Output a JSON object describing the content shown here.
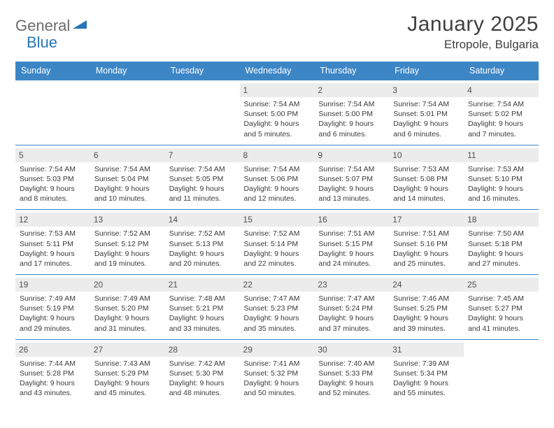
{
  "logo": {
    "general": "General",
    "blue": "Blue"
  },
  "title": "January 2025",
  "location": "Etropole, Bulgaria",
  "colors": {
    "header_bar": "#3d86c6",
    "day_number_bg": "#ececec",
    "text": "#404040",
    "logo_gray": "#6b6b6b",
    "logo_blue": "#2676b8"
  },
  "day_names": [
    "Sunday",
    "Monday",
    "Tuesday",
    "Wednesday",
    "Thursday",
    "Friday",
    "Saturday"
  ],
  "weeks": [
    [
      {
        "n": "",
        "sr": "",
        "ss": "",
        "dl": ""
      },
      {
        "n": "",
        "sr": "",
        "ss": "",
        "dl": ""
      },
      {
        "n": "",
        "sr": "",
        "ss": "",
        "dl": ""
      },
      {
        "n": "1",
        "sr": "Sunrise: 7:54 AM",
        "ss": "Sunset: 5:00 PM",
        "dl": "Daylight: 9 hours and 5 minutes."
      },
      {
        "n": "2",
        "sr": "Sunrise: 7:54 AM",
        "ss": "Sunset: 5:00 PM",
        "dl": "Daylight: 9 hours and 6 minutes."
      },
      {
        "n": "3",
        "sr": "Sunrise: 7:54 AM",
        "ss": "Sunset: 5:01 PM",
        "dl": "Daylight: 9 hours and 6 minutes."
      },
      {
        "n": "4",
        "sr": "Sunrise: 7:54 AM",
        "ss": "Sunset: 5:02 PM",
        "dl": "Daylight: 9 hours and 7 minutes."
      }
    ],
    [
      {
        "n": "5",
        "sr": "Sunrise: 7:54 AM",
        "ss": "Sunset: 5:03 PM",
        "dl": "Daylight: 9 hours and 8 minutes."
      },
      {
        "n": "6",
        "sr": "Sunrise: 7:54 AM",
        "ss": "Sunset: 5:04 PM",
        "dl": "Daylight: 9 hours and 10 minutes."
      },
      {
        "n": "7",
        "sr": "Sunrise: 7:54 AM",
        "ss": "Sunset: 5:05 PM",
        "dl": "Daylight: 9 hours and 11 minutes."
      },
      {
        "n": "8",
        "sr": "Sunrise: 7:54 AM",
        "ss": "Sunset: 5:06 PM",
        "dl": "Daylight: 9 hours and 12 minutes."
      },
      {
        "n": "9",
        "sr": "Sunrise: 7:54 AM",
        "ss": "Sunset: 5:07 PM",
        "dl": "Daylight: 9 hours and 13 minutes."
      },
      {
        "n": "10",
        "sr": "Sunrise: 7:53 AM",
        "ss": "Sunset: 5:08 PM",
        "dl": "Daylight: 9 hours and 14 minutes."
      },
      {
        "n": "11",
        "sr": "Sunrise: 7:53 AM",
        "ss": "Sunset: 5:10 PM",
        "dl": "Daylight: 9 hours and 16 minutes."
      }
    ],
    [
      {
        "n": "12",
        "sr": "Sunrise: 7:53 AM",
        "ss": "Sunset: 5:11 PM",
        "dl": "Daylight: 9 hours and 17 minutes."
      },
      {
        "n": "13",
        "sr": "Sunrise: 7:52 AM",
        "ss": "Sunset: 5:12 PM",
        "dl": "Daylight: 9 hours and 19 minutes."
      },
      {
        "n": "14",
        "sr": "Sunrise: 7:52 AM",
        "ss": "Sunset: 5:13 PM",
        "dl": "Daylight: 9 hours and 20 minutes."
      },
      {
        "n": "15",
        "sr": "Sunrise: 7:52 AM",
        "ss": "Sunset: 5:14 PM",
        "dl": "Daylight: 9 hours and 22 minutes."
      },
      {
        "n": "16",
        "sr": "Sunrise: 7:51 AM",
        "ss": "Sunset: 5:15 PM",
        "dl": "Daylight: 9 hours and 24 minutes."
      },
      {
        "n": "17",
        "sr": "Sunrise: 7:51 AM",
        "ss": "Sunset: 5:16 PM",
        "dl": "Daylight: 9 hours and 25 minutes."
      },
      {
        "n": "18",
        "sr": "Sunrise: 7:50 AM",
        "ss": "Sunset: 5:18 PM",
        "dl": "Daylight: 9 hours and 27 minutes."
      }
    ],
    [
      {
        "n": "19",
        "sr": "Sunrise: 7:49 AM",
        "ss": "Sunset: 5:19 PM",
        "dl": "Daylight: 9 hours and 29 minutes."
      },
      {
        "n": "20",
        "sr": "Sunrise: 7:49 AM",
        "ss": "Sunset: 5:20 PM",
        "dl": "Daylight: 9 hours and 31 minutes."
      },
      {
        "n": "21",
        "sr": "Sunrise: 7:48 AM",
        "ss": "Sunset: 5:21 PM",
        "dl": "Daylight: 9 hours and 33 minutes."
      },
      {
        "n": "22",
        "sr": "Sunrise: 7:47 AM",
        "ss": "Sunset: 5:23 PM",
        "dl": "Daylight: 9 hours and 35 minutes."
      },
      {
        "n": "23",
        "sr": "Sunrise: 7:47 AM",
        "ss": "Sunset: 5:24 PM",
        "dl": "Daylight: 9 hours and 37 minutes."
      },
      {
        "n": "24",
        "sr": "Sunrise: 7:46 AM",
        "ss": "Sunset: 5:25 PM",
        "dl": "Daylight: 9 hours and 39 minutes."
      },
      {
        "n": "25",
        "sr": "Sunrise: 7:45 AM",
        "ss": "Sunset: 5:27 PM",
        "dl": "Daylight: 9 hours and 41 minutes."
      }
    ],
    [
      {
        "n": "26",
        "sr": "Sunrise: 7:44 AM",
        "ss": "Sunset: 5:28 PM",
        "dl": "Daylight: 9 hours and 43 minutes."
      },
      {
        "n": "27",
        "sr": "Sunrise: 7:43 AM",
        "ss": "Sunset: 5:29 PM",
        "dl": "Daylight: 9 hours and 45 minutes."
      },
      {
        "n": "28",
        "sr": "Sunrise: 7:42 AM",
        "ss": "Sunset: 5:30 PM",
        "dl": "Daylight: 9 hours and 48 minutes."
      },
      {
        "n": "29",
        "sr": "Sunrise: 7:41 AM",
        "ss": "Sunset: 5:32 PM",
        "dl": "Daylight: 9 hours and 50 minutes."
      },
      {
        "n": "30",
        "sr": "Sunrise: 7:40 AM",
        "ss": "Sunset: 5:33 PM",
        "dl": "Daylight: 9 hours and 52 minutes."
      },
      {
        "n": "31",
        "sr": "Sunrise: 7:39 AM",
        "ss": "Sunset: 5:34 PM",
        "dl": "Daylight: 9 hours and 55 minutes."
      },
      {
        "n": "",
        "sr": "",
        "ss": "",
        "dl": ""
      }
    ]
  ]
}
